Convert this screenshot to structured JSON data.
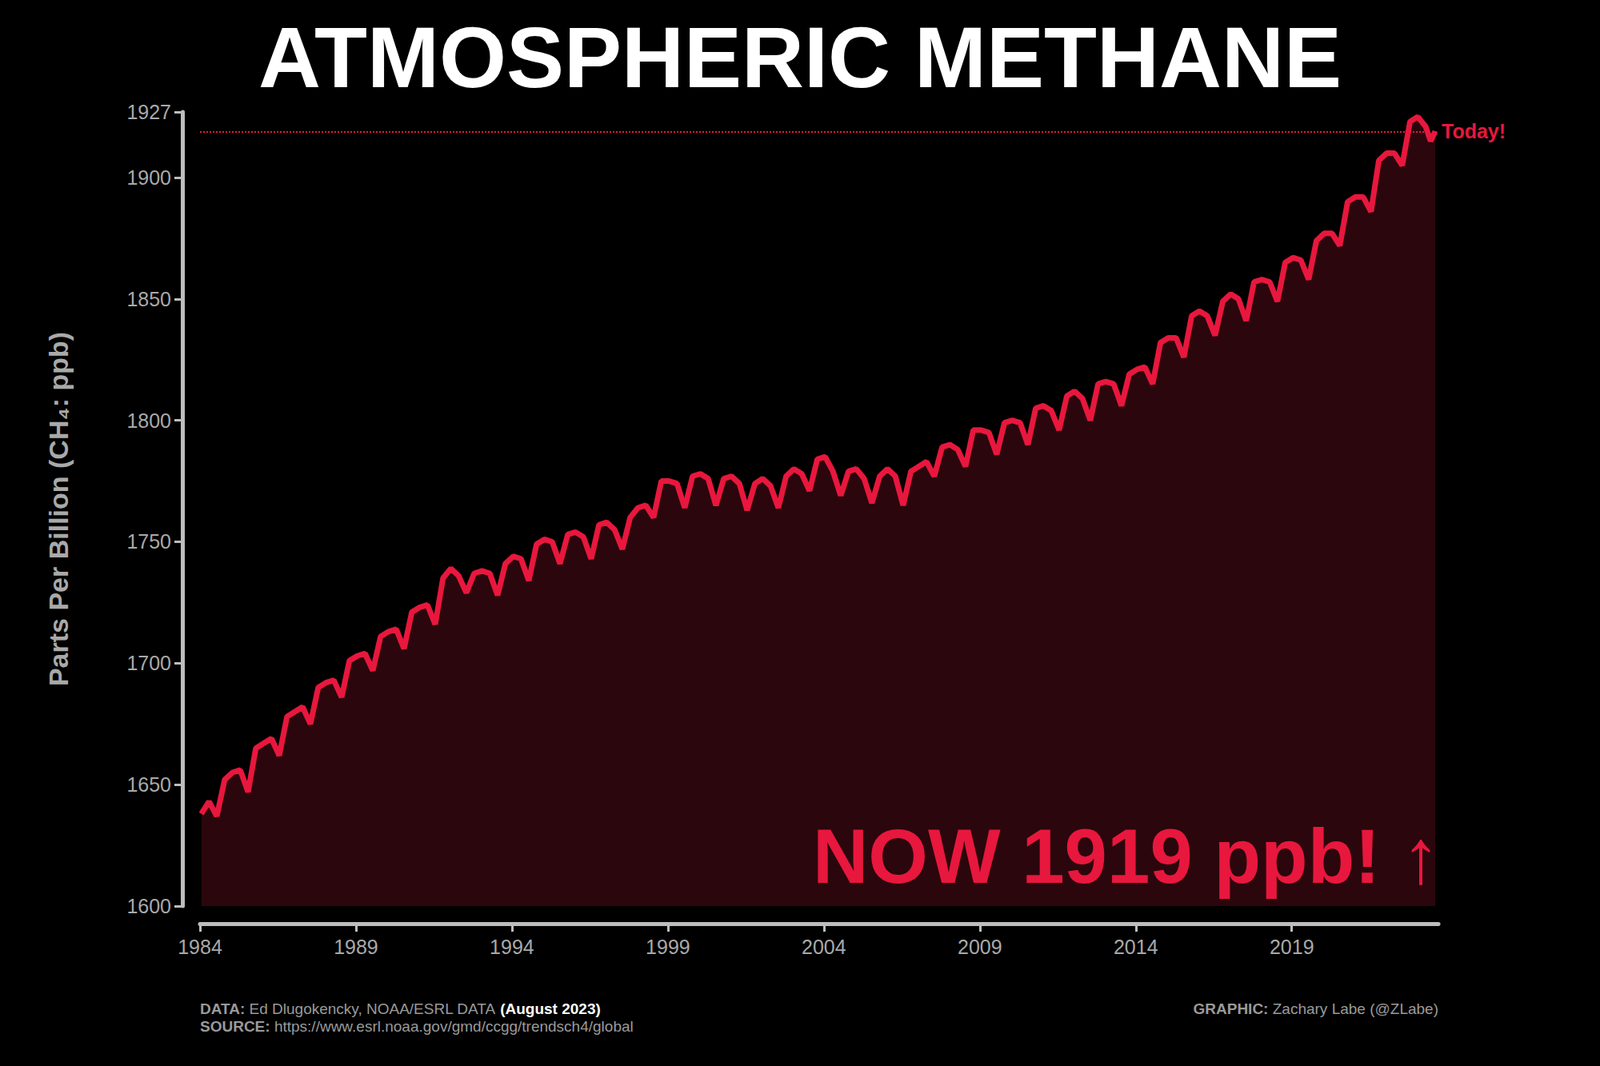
{
  "chart_data": {
    "type": "line",
    "title": "ATMOSPHERIC METHANE",
    "y_label": "Parts Per Billion (CH₄: ppb)",
    "color": "#e8173d",
    "grid": false,
    "x": [
      1984.04,
      1984.29,
      1984.54,
      1984.79,
      1985.04,
      1985.29,
      1985.54,
      1985.79,
      1986.04,
      1986.29,
      1986.54,
      1986.79,
      1987.04,
      1987.29,
      1987.54,
      1987.79,
      1988.04,
      1988.29,
      1988.54,
      1988.79,
      1989.04,
      1989.29,
      1989.54,
      1989.79,
      1990.04,
      1990.29,
      1990.54,
      1990.79,
      1991.04,
      1991.29,
      1991.54,
      1991.79,
      1992.04,
      1992.29,
      1992.54,
      1992.79,
      1993.04,
      1993.29,
      1993.54,
      1993.79,
      1994.04,
      1994.29,
      1994.54,
      1994.79,
      1995.04,
      1995.29,
      1995.54,
      1995.79,
      1996.04,
      1996.29,
      1996.54,
      1996.79,
      1997.04,
      1997.29,
      1997.54,
      1997.79,
      1998.04,
      1998.29,
      1998.54,
      1998.79,
      1999.04,
      1999.29,
      1999.54,
      1999.79,
      2000.04,
      2000.29,
      2000.54,
      2000.79,
      2001.04,
      2001.29,
      2001.54,
      2001.79,
      2002.04,
      2002.29,
      2002.54,
      2002.79,
      2003.04,
      2003.29,
      2003.54,
      2003.79,
      2004.04,
      2004.29,
      2004.54,
      2004.79,
      2005.04,
      2005.29,
      2005.54,
      2005.79,
      2006.04,
      2006.29,
      2006.54,
      2006.79,
      2007.04,
      2007.29,
      2007.54,
      2007.79,
      2008.04,
      2008.29,
      2008.54,
      2008.79,
      2009.04,
      2009.29,
      2009.54,
      2009.79,
      2010.04,
      2010.29,
      2010.54,
      2010.79,
      2011.04,
      2011.29,
      2011.54,
      2011.79,
      2012.04,
      2012.29,
      2012.54,
      2012.79,
      2013.04,
      2013.29,
      2013.54,
      2013.79,
      2014.04,
      2014.29,
      2014.54,
      2014.79,
      2015.04,
      2015.29,
      2015.54,
      2015.79,
      2016.04,
      2016.29,
      2016.54,
      2016.79,
      2017.04,
      2017.29,
      2017.54,
      2017.79,
      2018.04,
      2018.29,
      2018.54,
      2018.79,
      2019.04,
      2019.29,
      2019.54,
      2019.79,
      2020.04,
      2020.29,
      2020.54,
      2020.79,
      2021.04,
      2021.29,
      2021.54,
      2021.79,
      2022.04,
      2022.29,
      2022.54,
      2022.79,
      2023.04,
      2023.29,
      2023.45,
      2023.6
    ],
    "values": [
      1638,
      1643,
      1637,
      1652,
      1655,
      1656,
      1647,
      1665,
      1667,
      1669,
      1662,
      1678,
      1680,
      1682,
      1675,
      1690,
      1692,
      1693,
      1686,
      1701,
      1703,
      1704,
      1697,
      1711,
      1713,
      1714,
      1706,
      1721,
      1723,
      1724,
      1716,
      1735,
      1739,
      1736,
      1729,
      1737,
      1738,
      1737,
      1728,
      1741,
      1744,
      1743,
      1734,
      1749,
      1751,
      1750,
      1741,
      1753,
      1754,
      1752,
      1743,
      1757,
      1758,
      1755,
      1747,
      1760,
      1764,
      1765,
      1760,
      1775,
      1775,
      1774,
      1764,
      1777,
      1778,
      1776,
      1765,
      1776,
      1777,
      1774,
      1763,
      1774,
      1776,
      1773,
      1764,
      1777,
      1780,
      1778,
      1771,
      1784,
      1785,
      1779,
      1769,
      1779,
      1780,
      1776,
      1766,
      1777,
      1780,
      1777,
      1765,
      1779,
      1781,
      1783,
      1777,
      1789,
      1790,
      1788,
      1781,
      1796,
      1796,
      1795,
      1786,
      1799,
      1800,
      1799,
      1790,
      1805,
      1806,
      1804,
      1796,
      1810,
      1812,
      1809,
      1800,
      1815,
      1816,
      1815,
      1806,
      1819,
      1821,
      1822,
      1815,
      1832,
      1834,
      1834,
      1826,
      1843,
      1845,
      1843,
      1835,
      1849,
      1852,
      1850,
      1841,
      1857,
      1858,
      1857,
      1849,
      1865,
      1867,
      1866,
      1858,
      1874,
      1877,
      1877,
      1872,
      1890,
      1892,
      1892,
      1886,
      1907,
      1910,
      1910,
      1905,
      1923,
      1925,
      1921,
      1915,
      1919
    ],
    "xlim": [
      1984,
      2023.7
    ],
    "xticks": [
      1984,
      1989,
      1994,
      1999,
      2004,
      2009,
      2014,
      2019
    ],
    "ylim": [
      1600,
      1927
    ],
    "yticks": [
      1600,
      1650,
      1700,
      1750,
      1800,
      1850,
      1900
    ],
    "hline": {
      "value": 1919,
      "label": "Today!"
    },
    "annotation": "NOW 1919 ppb! ↑",
    "footer": [
      {
        "label": "DATA:",
        "text": "Ed Dlugokencky, NOAA/ESRL DATA",
        "note": "(August 2023)"
      },
      {
        "label": "SOURCE:",
        "text": "https://www.esrl.noaa.gov/gmd/ccgg/trendsch4/global"
      }
    ],
    "credit": {
      "label": "GRAPHIC:",
      "text": "Zachary Labe (@ZLabe)"
    }
  }
}
